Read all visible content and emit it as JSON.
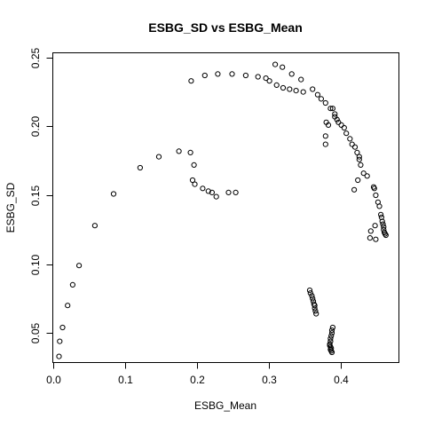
{
  "chart_data": {
    "type": "scatter",
    "title": "ESBG_SD vs ESBG_Mean",
    "xlabel": "ESBG_Mean",
    "ylabel": "ESBG_SD",
    "xlim": [
      0.0,
      0.4806
    ],
    "ylim": [
      0.0289,
      0.2531
    ],
    "x_ticks": [
      0.0,
      0.1,
      0.2,
      0.3,
      0.4
    ],
    "x_tick_labels": [
      "0.0",
      "0.1",
      "0.2",
      "0.3",
      "0.4"
    ],
    "y_ticks": [
      0.05,
      0.1,
      0.15,
      0.2,
      0.25
    ],
    "y_tick_labels": [
      "0.05",
      "0.10",
      "0.15",
      "0.20",
      "0.25"
    ],
    "grid": false,
    "marker": "open-circle",
    "series": [
      {
        "points": [
          [
            0.008,
            0.033
          ],
          [
            0.009,
            0.044
          ],
          [
            0.013,
            0.054
          ],
          [
            0.02,
            0.07
          ],
          [
            0.027,
            0.085
          ],
          [
            0.036,
            0.099
          ],
          [
            0.058,
            0.128
          ],
          [
            0.084,
            0.151
          ],
          [
            0.121,
            0.17
          ],
          [
            0.147,
            0.178
          ],
          [
            0.175,
            0.182
          ],
          [
            0.191,
            0.181
          ],
          [
            0.196,
            0.172
          ],
          [
            0.194,
            0.161
          ],
          [
            0.197,
            0.158
          ],
          [
            0.208,
            0.155
          ],
          [
            0.216,
            0.153
          ],
          [
            0.221,
            0.152
          ],
          [
            0.227,
            0.149
          ],
          [
            0.244,
            0.152
          ],
          [
            0.254,
            0.152
          ],
          [
            0.192,
            0.233
          ],
          [
            0.211,
            0.237
          ],
          [
            0.229,
            0.238
          ],
          [
            0.249,
            0.238
          ],
          [
            0.268,
            0.237
          ],
          [
            0.285,
            0.236
          ],
          [
            0.296,
            0.235
          ],
          [
            0.301,
            0.233
          ],
          [
            0.311,
            0.23
          ],
          [
            0.32,
            0.228
          ],
          [
            0.329,
            0.227
          ],
          [
            0.338,
            0.226
          ],
          [
            0.348,
            0.225
          ],
          [
            0.309,
            0.245
          ],
          [
            0.319,
            0.243
          ],
          [
            0.332,
            0.238
          ],
          [
            0.345,
            0.234
          ],
          [
            0.361,
            0.227
          ],
          [
            0.368,
            0.223
          ],
          [
            0.373,
            0.22
          ],
          [
            0.379,
            0.217
          ],
          [
            0.386,
            0.213
          ],
          [
            0.392,
            0.209
          ],
          [
            0.397,
            0.203
          ],
          [
            0.401,
            0.201
          ],
          [
            0.405,
            0.199
          ],
          [
            0.408,
            0.195
          ],
          [
            0.413,
            0.191
          ],
          [
            0.416,
            0.187
          ],
          [
            0.42,
            0.185
          ],
          [
            0.423,
            0.181
          ],
          [
            0.426,
            0.178
          ],
          [
            0.426,
            0.176
          ],
          [
            0.428,
            0.172
          ],
          [
            0.432,
            0.166
          ],
          [
            0.437,
            0.164
          ],
          [
            0.424,
            0.161
          ],
          [
            0.419,
            0.154
          ],
          [
            0.446,
            0.156
          ],
          [
            0.447,
            0.155
          ],
          [
            0.449,
            0.15
          ],
          [
            0.452,
            0.145
          ],
          [
            0.454,
            0.142
          ],
          [
            0.456,
            0.136
          ],
          [
            0.457,
            0.134
          ],
          [
            0.458,
            0.131
          ],
          [
            0.459,
            0.129
          ],
          [
            0.46,
            0.127
          ],
          [
            0.46,
            0.125
          ],
          [
            0.461,
            0.123
          ],
          [
            0.462,
            0.122
          ],
          [
            0.463,
            0.121
          ],
          [
            0.448,
            0.128
          ],
          [
            0.442,
            0.124
          ],
          [
            0.441,
            0.119
          ],
          [
            0.449,
            0.118
          ],
          [
            0.379,
            0.187
          ],
          [
            0.379,
            0.193
          ],
          [
            0.383,
            0.201
          ],
          [
            0.389,
            0.213
          ],
          [
            0.38,
            0.203
          ],
          [
            0.392,
            0.207
          ],
          [
            0.395,
            0.205
          ],
          [
            0.357,
            0.081
          ],
          [
            0.358,
            0.079
          ],
          [
            0.36,
            0.077
          ],
          [
            0.361,
            0.075
          ],
          [
            0.362,
            0.073
          ],
          [
            0.363,
            0.071
          ],
          [
            0.364,
            0.068
          ],
          [
            0.365,
            0.066
          ],
          [
            0.366,
            0.064
          ],
          [
            0.364,
            0.07
          ],
          [
            0.389,
            0.054
          ],
          [
            0.388,
            0.052
          ],
          [
            0.388,
            0.05
          ],
          [
            0.387,
            0.048
          ],
          [
            0.386,
            0.046
          ],
          [
            0.386,
            0.044
          ],
          [
            0.385,
            0.042
          ],
          [
            0.386,
            0.04
          ],
          [
            0.387,
            0.039
          ],
          [
            0.387,
            0.037
          ],
          [
            0.388,
            0.036
          ],
          [
            0.386,
            0.038
          ],
          [
            0.385,
            0.041
          ]
        ]
      }
    ]
  }
}
